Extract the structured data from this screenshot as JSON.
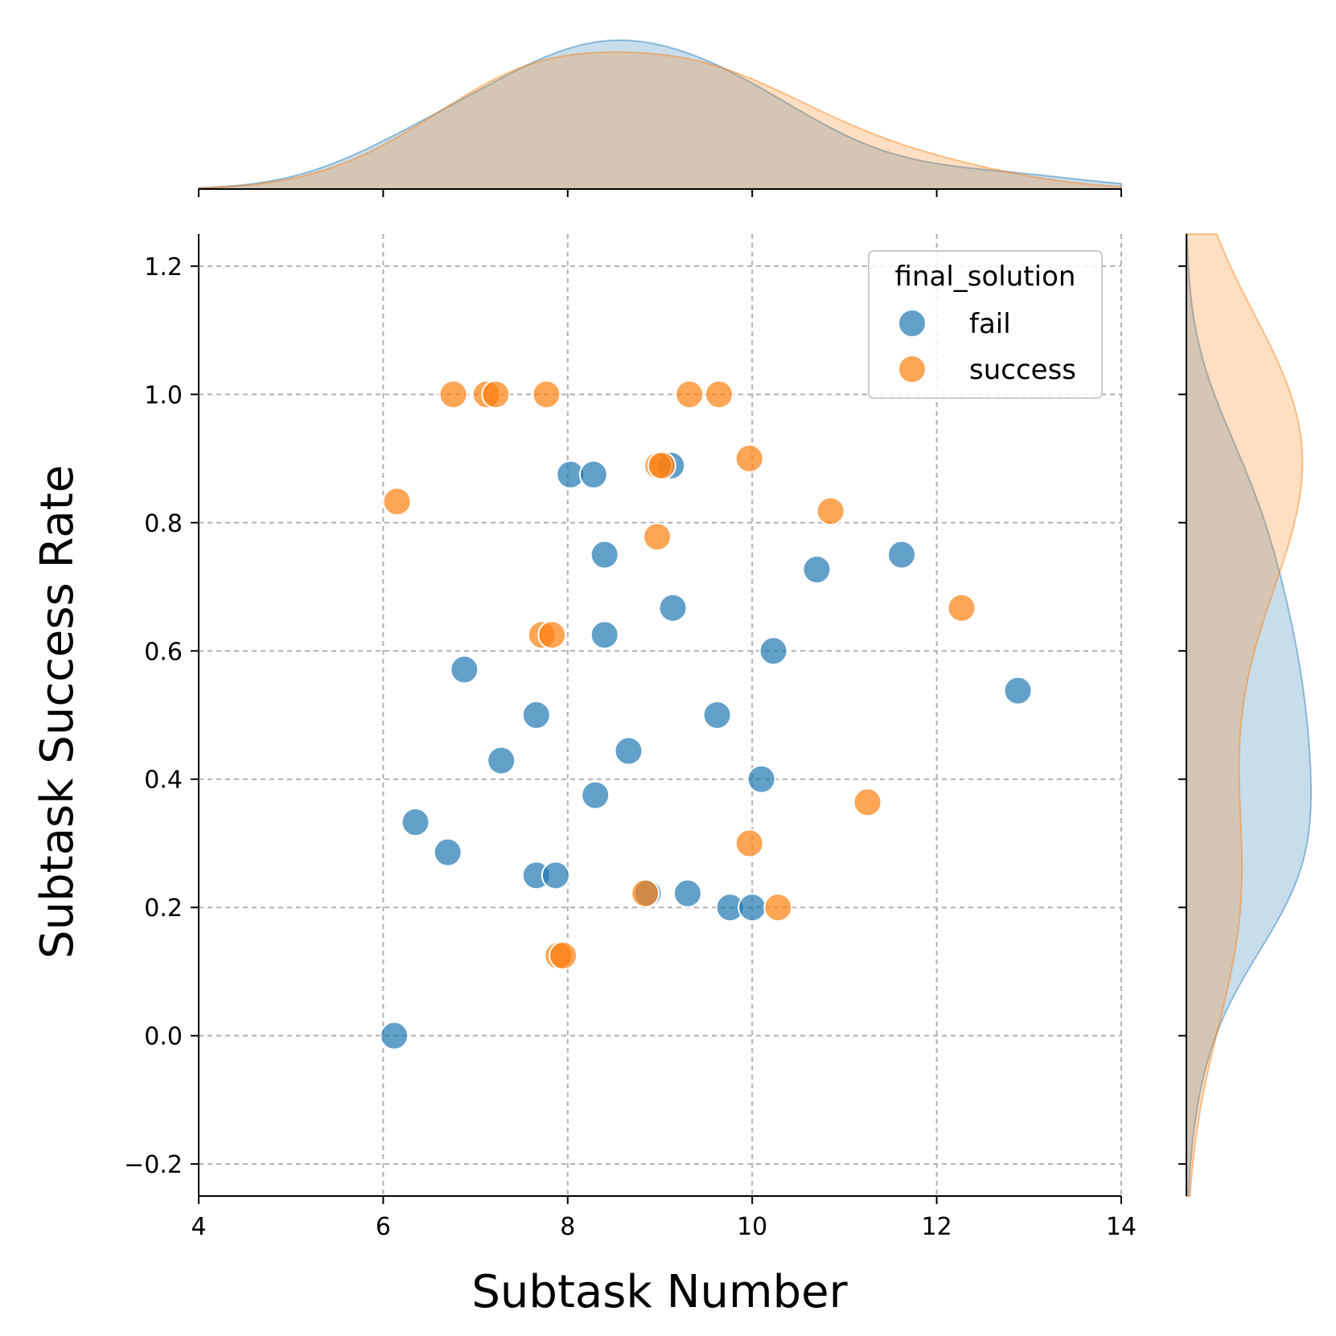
{
  "chart_data": {
    "type": "scatter",
    "xlabel": "Subtask Number",
    "ylabel": "Subtask Success Rate",
    "xlim": [
      4,
      14
    ],
    "ylim": [
      -0.25,
      1.25
    ],
    "xticks": [
      "4",
      "6",
      "8",
      "10",
      "12",
      "14"
    ],
    "yticks": [
      "−0.2",
      "0.0",
      "0.2",
      "0.4",
      "0.6",
      "0.8",
      "1.0",
      "1.2"
    ],
    "grid": true,
    "legend": {
      "title": "final_solution",
      "position": "top-right",
      "entries": [
        "fail",
        "success"
      ]
    },
    "marginals": {
      "top": "kde of x per hue",
      "right": "kde of y per hue"
    },
    "series": [
      {
        "name": "fail",
        "color": "#1f77b4",
        "points": [
          [
            8.03,
            0.875
          ],
          [
            8.28,
            0.875
          ],
          [
            9.12,
            0.889
          ],
          [
            8.4,
            0.75
          ],
          [
            11.62,
            0.75
          ],
          [
            10.7,
            0.727
          ],
          [
            9.14,
            0.667
          ],
          [
            8.4,
            0.625
          ],
          [
            10.23,
            0.6
          ],
          [
            6.88,
            0.571
          ],
          [
            12.88,
            0.538
          ],
          [
            7.66,
            0.5
          ],
          [
            9.62,
            0.5
          ],
          [
            8.66,
            0.444
          ],
          [
            7.28,
            0.429
          ],
          [
            10.1,
            0.4
          ],
          [
            8.3,
            0.375
          ],
          [
            6.35,
            0.333
          ],
          [
            6.7,
            0.286
          ],
          [
            7.66,
            0.25
          ],
          [
            7.87,
            0.25
          ],
          [
            8.87,
            0.222
          ],
          [
            9.3,
            0.222
          ],
          [
            9.76,
            0.2
          ],
          [
            10.0,
            0.2
          ],
          [
            6.12,
            0.0
          ]
        ]
      },
      {
        "name": "success",
        "color": "#ff7f0e",
        "points": [
          [
            6.76,
            1.0
          ],
          [
            7.12,
            1.0
          ],
          [
            7.22,
            1.0
          ],
          [
            7.77,
            1.0
          ],
          [
            9.32,
            1.0
          ],
          [
            9.64,
            1.0
          ],
          [
            8.98,
            0.889
          ],
          [
            9.02,
            0.889
          ],
          [
            9.97,
            0.9
          ],
          [
            6.15,
            0.833
          ],
          [
            10.85,
            0.818
          ],
          [
            8.97,
            0.778
          ],
          [
            12.27,
            0.667
          ],
          [
            7.72,
            0.625
          ],
          [
            7.83,
            0.625
          ],
          [
            11.25,
            0.364
          ],
          [
            9.97,
            0.3
          ],
          [
            8.84,
            0.222
          ],
          [
            10.28,
            0.2
          ],
          [
            7.9,
            0.125
          ],
          [
            7.95,
            0.125
          ]
        ]
      }
    ]
  }
}
